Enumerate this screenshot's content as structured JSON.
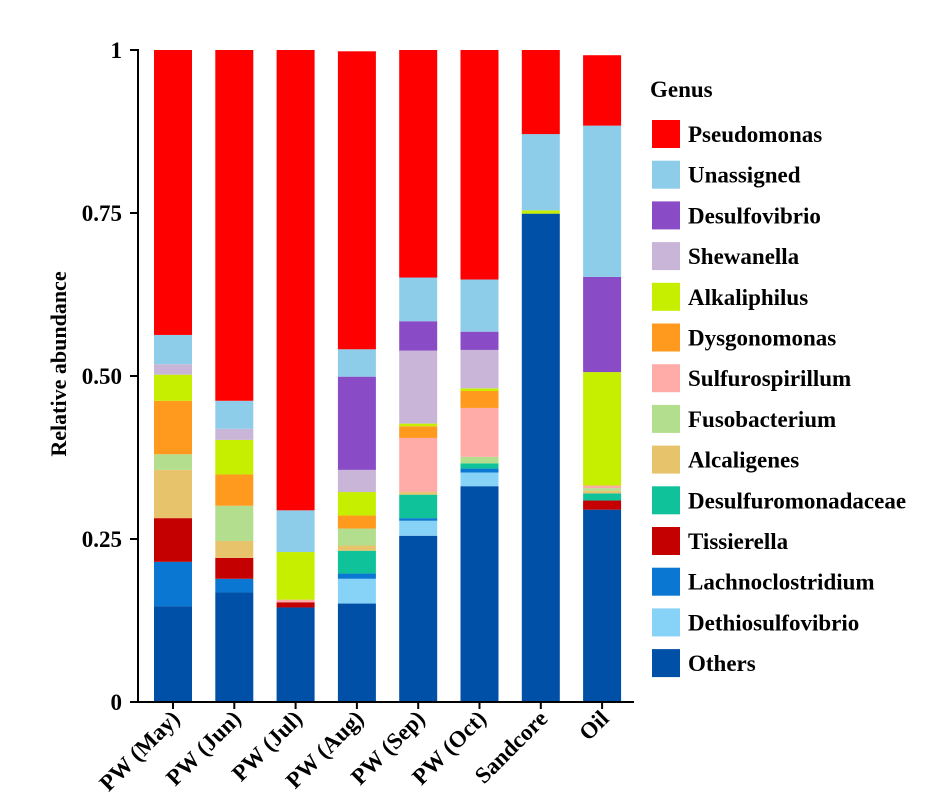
{
  "chart_data": {
    "type": "bar",
    "stacked": true,
    "title": "",
    "xlabel": "",
    "ylabel": "Relative abundance",
    "ylim": [
      0,
      1
    ],
    "yticks": [
      {
        "value": 0,
        "label": "0"
      },
      {
        "value": 0.25,
        "label": "0.25"
      },
      {
        "value": 0.5,
        "label": "0.50"
      },
      {
        "value": 0.75,
        "label": "0.75"
      },
      {
        "value": 1,
        "label": "1"
      }
    ],
    "categories": [
      "PW (May)",
      "PW (Jun)",
      "PW (Jul)",
      "PW (Aug)",
      "PW (Sep)",
      "PW (Oct)",
      "Sandcore",
      "Oil"
    ],
    "legend_title": "Genus",
    "legend_position": "right",
    "series": [
      {
        "name": "Others",
        "color": "#0050A8",
        "values": [
          0.147,
          0.168,
          0.145,
          0.151,
          0.255,
          0.331,
          0.749,
          0.295
        ]
      },
      {
        "name": "Dethiosulfovibrio",
        "color": "#87D3F8",
        "values": [
          0.0,
          0.0,
          0.0,
          0.038,
          0.023,
          0.021,
          0.0,
          0.0
        ]
      },
      {
        "name": "Lachnoclostridium",
        "color": "#0A78D2",
        "values": [
          0.068,
          0.021,
          0.0,
          0.008,
          0.004,
          0.006,
          0.0,
          0.0
        ]
      },
      {
        "name": "Tissierella",
        "color": "#C40000",
        "values": [
          0.067,
          0.032,
          0.008,
          0.0,
          0.0,
          0.0,
          0.0,
          0.014
        ]
      },
      {
        "name": "Desulfuromonadaceae",
        "color": "#10C29A",
        "values": [
          0.0,
          0.0,
          0.0,
          0.035,
          0.036,
          0.008,
          0.0,
          0.011
        ]
      },
      {
        "name": "Alcaligenes",
        "color": "#E7C46B",
        "values": [
          0.074,
          0.026,
          0.0,
          0.008,
          0.004,
          0.0,
          0.0,
          0.004
        ]
      },
      {
        "name": "Fusobacterium",
        "color": "#B2DE8E",
        "values": [
          0.024,
          0.054,
          0.0,
          0.026,
          0.0,
          0.01,
          0.0,
          0.004
        ]
      },
      {
        "name": "Sulfurospirillum",
        "color": "#FFABA8",
        "values": [
          0.0,
          0.0,
          0.004,
          0.0,
          0.083,
          0.075,
          0.0,
          0.004
        ]
      },
      {
        "name": "Dysgonomonas",
        "color": "#FF9A1E",
        "values": [
          0.082,
          0.048,
          0.0,
          0.02,
          0.018,
          0.026,
          0.0,
          0.0
        ]
      },
      {
        "name": "Alkaliphilus",
        "color": "#C6EF00",
        "values": [
          0.04,
          0.053,
          0.073,
          0.036,
          0.004,
          0.004,
          0.005,
          0.174
        ]
      },
      {
        "name": "Shewanella",
        "color": "#C9B5D8",
        "values": [
          0.016,
          0.017,
          0.0,
          0.034,
          0.112,
          0.059,
          0.0,
          0.0
        ]
      },
      {
        "name": "Desulfovibrio",
        "color": "#8A4CC6",
        "values": [
          0.0,
          0.0,
          0.0,
          0.143,
          0.045,
          0.028,
          0.0,
          0.146
        ]
      },
      {
        "name": "Unassigned",
        "color": "#8DCDE9",
        "values": [
          0.045,
          0.043,
          0.064,
          0.042,
          0.067,
          0.08,
          0.117,
          0.232
        ]
      },
      {
        "name": "Pseudomonas",
        "color": "#FF0000",
        "values": [
          0.437,
          0.538,
          0.706,
          0.457,
          0.349,
          0.352,
          0.129,
          0.108
        ]
      }
    ],
    "legend_order": [
      "Pseudomonas",
      "Unassigned",
      "Desulfovibrio",
      "Shewanella",
      "Alkaliphilus",
      "Dysgonomonas",
      "Sulfurospirillum",
      "Fusobacterium",
      "Alcaligenes",
      "Desulfuromonadaceae",
      "Tissierella",
      "Lachnoclostridium",
      "Dethiosulfovibrio",
      "Others"
    ]
  }
}
